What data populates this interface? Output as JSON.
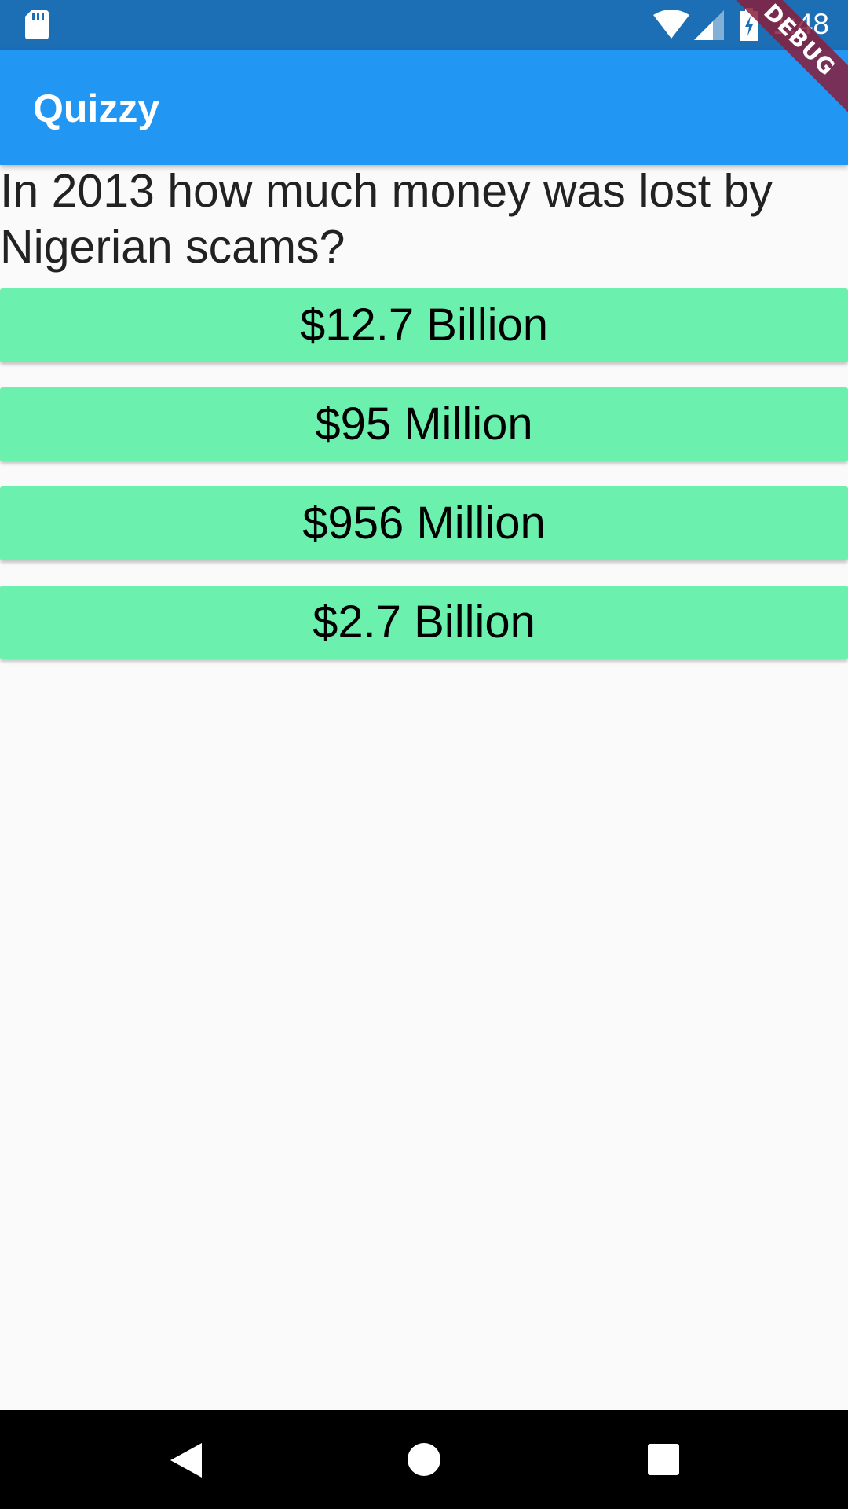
{
  "status_bar": {
    "time": "1:48",
    "icons": [
      "sd-card-icon",
      "wifi-icon",
      "cell-signal-icon",
      "battery-charging-icon"
    ]
  },
  "app_bar": {
    "title": "Quizzy"
  },
  "debug_banner": {
    "label": "DEBUG"
  },
  "quiz": {
    "question": "In 2013 how much money was lost by Nigerian scams?",
    "answers": [
      {
        "label": "$12.7 Billion"
      },
      {
        "label": "$95 Million"
      },
      {
        "label": "$956 Million"
      },
      {
        "label": "$2.7 Billion"
      }
    ]
  },
  "nav_bar": {
    "icons": [
      "back-icon",
      "home-icon",
      "recents-icon"
    ]
  },
  "colors": {
    "status_bar": "#1C6FB5",
    "app_bar": "#2196F3",
    "answer_button": "#6CF0AE",
    "background": "#FAFAFA"
  }
}
